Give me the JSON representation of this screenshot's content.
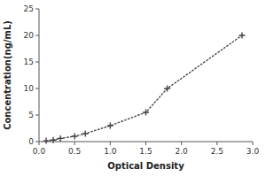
{
  "chart_data": {
    "type": "line",
    "xlabel": "Optical Density",
    "ylabel": "Concentration(ng/mL)",
    "x": [
      0.1,
      0.2,
      0.3,
      0.5,
      0.65,
      1.0,
      1.5,
      1.8,
      2.85
    ],
    "values": [
      0.15,
      0.3,
      0.6,
      1.0,
      1.5,
      3.0,
      5.5,
      10.0,
      20.0
    ],
    "color": "#444444",
    "line_style": "dotted",
    "marker": "+",
    "grid": false,
    "xlim": [
      0,
      3.0
    ],
    "ylim": [
      0,
      25
    ],
    "xticks": [
      {
        "value": 0,
        "label": "0.0"
      },
      0.5,
      {
        "value": 1,
        "label": "1.0"
      },
      1.5,
      {
        "value": 2,
        "label": "2.0"
      },
      2.5,
      {
        "value": 3,
        "label": "3.0"
      }
    ],
    "yticks": [
      0,
      5,
      10,
      15,
      20,
      25
    ]
  }
}
